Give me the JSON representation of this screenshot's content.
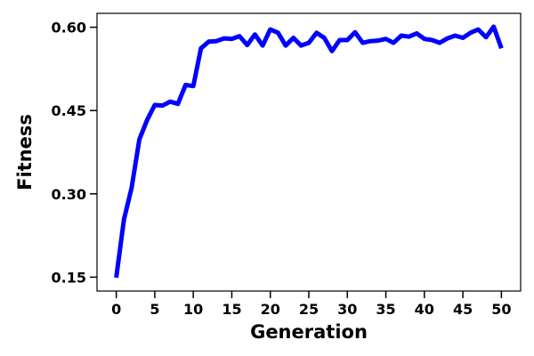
{
  "chart_data": {
    "type": "line",
    "title": "",
    "xlabel": "Generation",
    "ylabel": "Fitness",
    "xlim": [
      -2.5,
      52.5
    ],
    "ylim": [
      0.125,
      0.625
    ],
    "xticks": [
      0,
      5,
      10,
      15,
      20,
      25,
      30,
      35,
      40,
      45,
      50
    ],
    "xtick_labels": [
      "0",
      "5",
      "10",
      "15",
      "20",
      "25",
      "30",
      "35",
      "40",
      "45",
      "50"
    ],
    "yticks": [
      0.15,
      0.3,
      0.45,
      0.6
    ],
    "ytick_labels": [
      "0.15",
      "0.30",
      "0.45",
      "0.60"
    ],
    "grid": false,
    "legend": "none",
    "series": [
      {
        "color": "#0000ff",
        "x": [
          0,
          1,
          2,
          3,
          4,
          5,
          6,
          7,
          8,
          9,
          10,
          11,
          12,
          13,
          14,
          15,
          16,
          17,
          18,
          19,
          20,
          21,
          22,
          23,
          24,
          25,
          26,
          27,
          28,
          29,
          30,
          31,
          32,
          33,
          34,
          35,
          36,
          37,
          38,
          39,
          40,
          41,
          42,
          43,
          44,
          45,
          46,
          47,
          48,
          49,
          50
        ],
        "y": [
          0.149,
          0.254,
          0.311,
          0.398,
          0.433,
          0.46,
          0.459,
          0.466,
          0.462,
          0.496,
          0.494,
          0.562,
          0.574,
          0.575,
          0.58,
          0.579,
          0.584,
          0.568,
          0.587,
          0.567,
          0.596,
          0.59,
          0.567,
          0.581,
          0.567,
          0.572,
          0.59,
          0.581,
          0.557,
          0.577,
          0.577,
          0.591,
          0.572,
          0.575,
          0.576,
          0.579,
          0.572,
          0.585,
          0.583,
          0.589,
          0.579,
          0.577,
          0.572,
          0.58,
          0.585,
          0.581,
          0.59,
          0.596,
          0.582,
          0.601,
          0.562
        ]
      }
    ]
  }
}
